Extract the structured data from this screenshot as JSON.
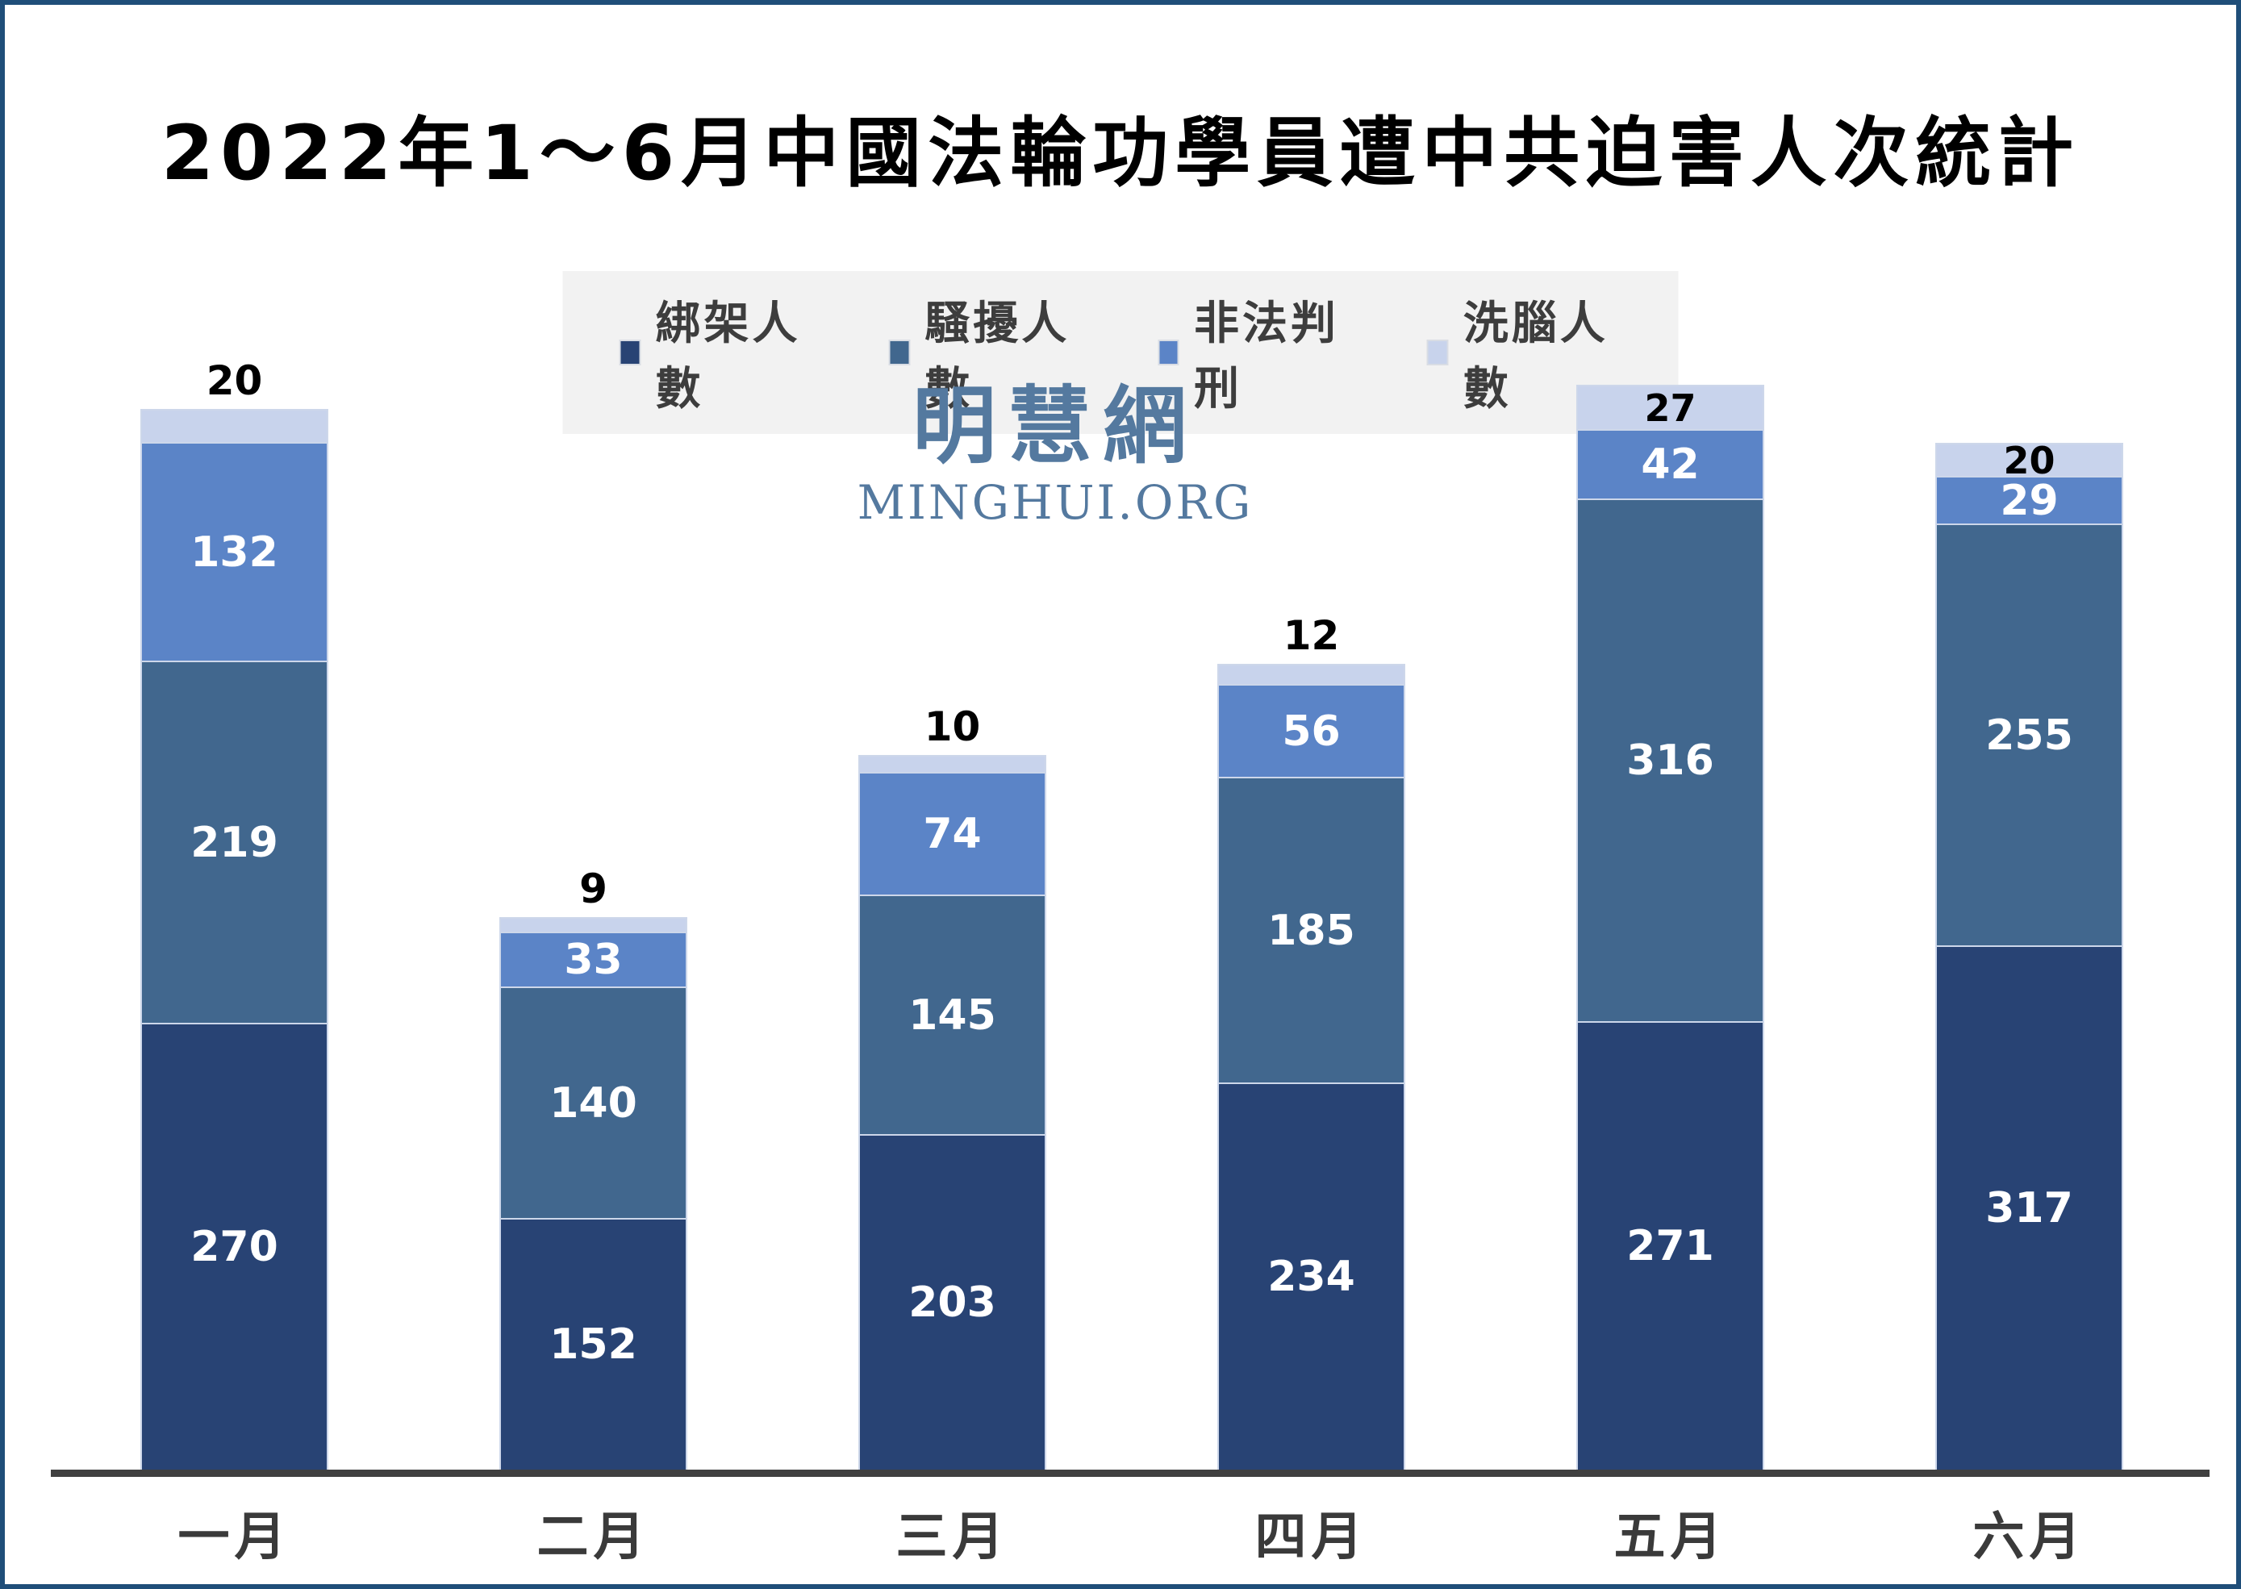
{
  "frame": {
    "border_color": "#1f4e79",
    "background_color": "#ffffff"
  },
  "title": "2022年1～6月中國法輪功學員遭中共迫害人次統計",
  "legend": {
    "background_color": "#f2f2f2",
    "items": [
      {
        "label": "綁架人數",
        "color": "#284374"
      },
      {
        "label": "騷擾人數",
        "color": "#41678e"
      },
      {
        "label": "非法判刑",
        "color": "#5b84c7"
      },
      {
        "label": "洗腦人數",
        "color": "#c8d3ec"
      }
    ]
  },
  "watermark": {
    "cjk": "明慧網",
    "latin": "MINGHUI.ORG",
    "color": "#54799f"
  },
  "chart_data": {
    "type": "bar",
    "stacked": true,
    "title": "2022年1～6月中國法輪功學員遭中共迫害人次統計",
    "categories": [
      "一月",
      "二月",
      "三月",
      "四月",
      "五月",
      "六月"
    ],
    "series": [
      {
        "name": "綁架人數",
        "color": "#284374",
        "values": [
          270,
          152,
          203,
          234,
          271,
          317
        ]
      },
      {
        "name": "騷擾人數",
        "color": "#41678e",
        "values": [
          219,
          140,
          145,
          185,
          316,
          255
        ]
      },
      {
        "name": "非法判刑",
        "color": "#5b84c7",
        "values": [
          132,
          33,
          74,
          56,
          42,
          29
        ]
      },
      {
        "name": "洗腦人數",
        "color": "#c8d3ec",
        "values": [
          20,
          9,
          10,
          12,
          27,
          20
        ]
      }
    ],
    "totals": [
      641,
      334,
      432,
      487,
      656,
      621
    ],
    "top_label_values": [
      20,
      9,
      10,
      12,
      27,
      20
    ],
    "top_label_placement": [
      "above",
      "above",
      "above",
      "above",
      "inside",
      "inside"
    ],
    "inside_label_color": "#ffffff",
    "top_label_color": "#000000",
    "axis_line_color": "#404040",
    "legend_position": "top",
    "grid": false,
    "ylim": [
      0,
      656
    ]
  }
}
